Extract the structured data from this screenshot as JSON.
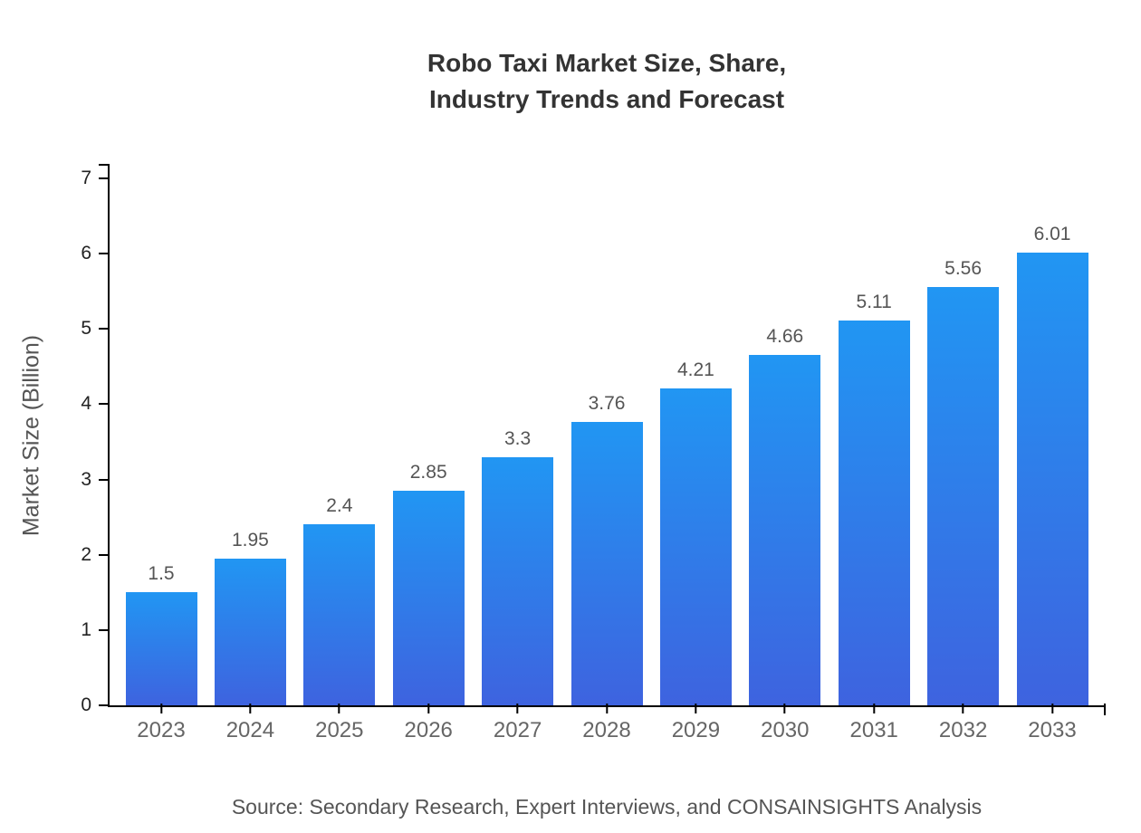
{
  "title": {
    "line1": "Robo Taxi Market Size, Share,",
    "line2": "Industry Trends and Forecast"
  },
  "source": "Source: Secondary Research, Expert Interviews, and CONSAINSIGHTS Analysis",
  "colors": {
    "bar_gradient_top": "#2196F3",
    "bar_gradient_bottom": "#3E63DF",
    "axis": "#000000",
    "title_text": "#333333",
    "value_label": "#555555",
    "x_tick_label": "#666666",
    "y_tick_label": "#222222"
  },
  "chart_data": {
    "type": "bar",
    "title": "Robo Taxi Market Size, Share, Industry Trends and Forecast",
    "categories": [
      "2023",
      "2024",
      "2025",
      "2026",
      "2027",
      "2028",
      "2029",
      "2030",
      "2031",
      "2032",
      "2033"
    ],
    "values": [
      1.5,
      1.95,
      2.4,
      2.85,
      3.3,
      3.76,
      4.21,
      4.66,
      5.11,
      5.56,
      6.01
    ],
    "value_labels": [
      "1.5",
      "1.95",
      "2.4",
      "2.85",
      "3.3",
      "3.76",
      "4.21",
      "4.66",
      "5.11",
      "5.56",
      "6.01"
    ],
    "xlabel": "",
    "ylabel": "Market Size (Billion)",
    "ylim": [
      0,
      7
    ],
    "yticks": [
      "0",
      "1",
      "2",
      "3",
      "4",
      "5",
      "6",
      "7"
    ],
    "grid": false,
    "legend_position": "none"
  }
}
